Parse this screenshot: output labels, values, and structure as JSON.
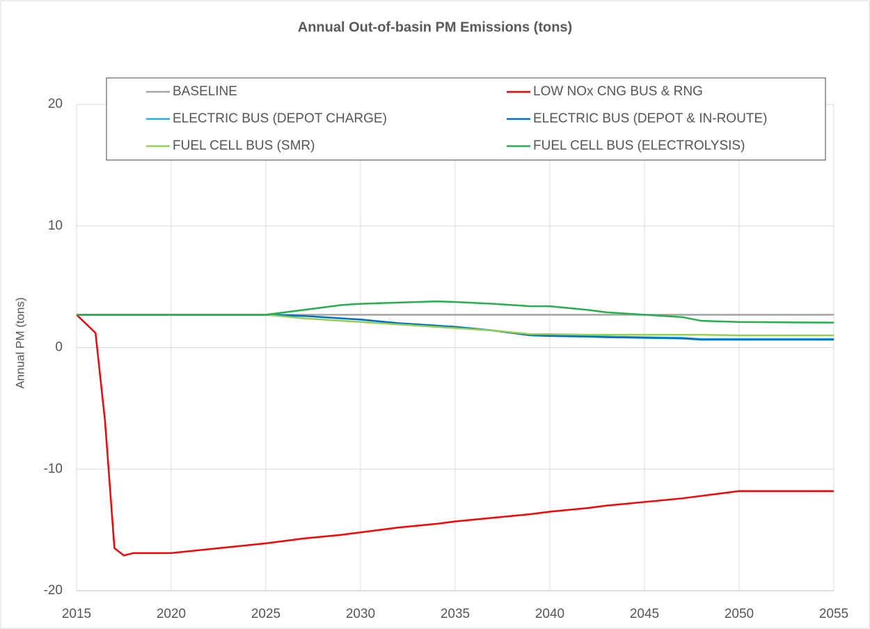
{
  "chart_data": {
    "type": "line",
    "title": "Annual Out-of-basin PM Emissions (tons)",
    "y_label": "Annual PM (tons)",
    "x": [
      2015,
      2016,
      2016.5,
      2017,
      2017.5,
      2018,
      2020,
      2025,
      2027,
      2029,
      2030,
      2032,
      2034,
      2035,
      2037,
      2039,
      2040,
      2042,
      2043,
      2045,
      2047,
      2048,
      2050,
      2055
    ],
    "series": [
      {
        "name": "BASELINE",
        "color": "#a5a5a5",
        "values": [
          2.7,
          2.7,
          2.7,
          2.7,
          2.7,
          2.7,
          2.7,
          2.7,
          2.7,
          2.7,
          2.7,
          2.7,
          2.7,
          2.7,
          2.7,
          2.7,
          2.7,
          2.7,
          2.7,
          2.7,
          2.7,
          2.7,
          2.7,
          2.7
        ]
      },
      {
        "name": "LOW NOx CNG BUS & RNG",
        "color": "#ff0000",
        "values": [
          2.7,
          1.2,
          -6,
          -16.5,
          -17.1,
          -16.9,
          -16.9,
          -16.1,
          -15.7,
          -15.4,
          -15.2,
          -14.8,
          -14.5,
          -14.3,
          -14.0,
          -13.7,
          -13.5,
          -13.2,
          -13.0,
          -12.7,
          -12.4,
          -12.2,
          -11.8,
          -11.8
        ]
      },
      {
        "name": "ELECTRIC BUS (DEPOT CHARGE)",
        "color": "#1fb0e8",
        "values": [
          2.7,
          2.7,
          2.7,
          2.7,
          2.7,
          2.7,
          2.7,
          2.7,
          2.6,
          2.4,
          2.3,
          2.0,
          1.8,
          1.7,
          1.4,
          1.05,
          1.0,
          0.95,
          0.9,
          0.85,
          0.8,
          0.7,
          0.7,
          0.7
        ]
      },
      {
        "name": "ELECTRIC BUS (DEPOT & IN-ROUTE)",
        "color": "#0070c0",
        "values": [
          2.7,
          2.7,
          2.7,
          2.7,
          2.7,
          2.7,
          2.7,
          2.7,
          2.6,
          2.4,
          2.3,
          2.0,
          1.8,
          1.7,
          1.4,
          1.0,
          0.95,
          0.9,
          0.85,
          0.8,
          0.75,
          0.65,
          0.65,
          0.65
        ]
      },
      {
        "name": "FUEL CELL BUS (SMR)",
        "color": "#92d050",
        "values": [
          2.7,
          2.7,
          2.7,
          2.7,
          2.7,
          2.7,
          2.7,
          2.7,
          2.4,
          2.2,
          2.1,
          1.9,
          1.7,
          1.6,
          1.4,
          1.1,
          1.1,
          1.05,
          1.05,
          1.05,
          1.05,
          1.05,
          1.0,
          1.0
        ]
      },
      {
        "name": "FUEL CELL BUS (ELECTROLYSIS)",
        "color": "#23b04b",
        "values": [
          2.7,
          2.7,
          2.7,
          2.7,
          2.7,
          2.7,
          2.7,
          2.7,
          3.1,
          3.5,
          3.6,
          3.7,
          3.8,
          3.75,
          3.6,
          3.4,
          3.4,
          3.1,
          2.9,
          2.7,
          2.5,
          2.2,
          2.1,
          2.05
        ]
      }
    ],
    "xlim": [
      2015,
      2055
    ],
    "xticks": [
      2015,
      2020,
      2025,
      2030,
      2035,
      2040,
      2045,
      2050,
      2055
    ],
    "ylim": [
      -20,
      20
    ],
    "yticks": [
      -20,
      -10,
      0,
      10,
      20
    ],
    "grid": true,
    "legend": "top"
  }
}
